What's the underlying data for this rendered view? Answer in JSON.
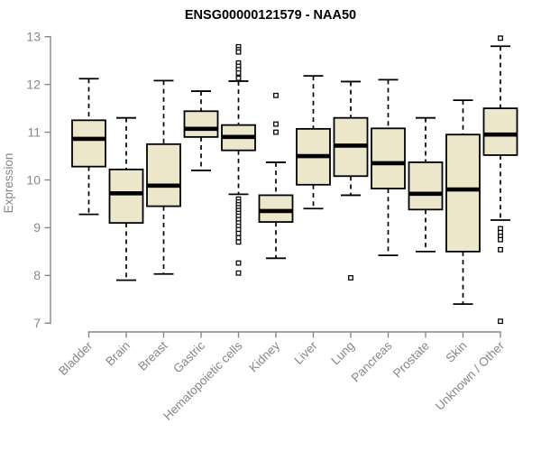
{
  "chart_data": {
    "type": "boxplot",
    "title": "ENSG00000121579 - NAA50",
    "ylabel": "Expression",
    "xlabel": "",
    "ylim": [
      7,
      13
    ],
    "yticks": [
      7,
      8,
      9,
      10,
      11,
      12,
      13
    ],
    "grid": false,
    "legend": "none",
    "x_label_rotation_deg": 45,
    "categories": [
      "Bladder",
      "Brain",
      "Breast",
      "Gastric",
      "Hematopoietic cells",
      "Kidney",
      "Liver",
      "Lung",
      "Pancreas",
      "Prostate",
      "Skin",
      "Unknown / Other"
    ],
    "series": [
      {
        "category": "Bladder",
        "whisker_low": 9.28,
        "q1": 10.28,
        "median": 10.86,
        "q3": 11.25,
        "whisker_high": 12.12,
        "outliers": []
      },
      {
        "category": "Brain",
        "whisker_low": 7.9,
        "q1": 9.1,
        "median": 9.72,
        "q3": 10.22,
        "whisker_high": 11.3,
        "outliers": []
      },
      {
        "category": "Breast",
        "whisker_low": 8.03,
        "q1": 9.45,
        "median": 9.88,
        "q3": 10.75,
        "whisker_high": 12.08,
        "outliers": []
      },
      {
        "category": "Gastric",
        "whisker_low": 10.2,
        "q1": 10.9,
        "median": 11.07,
        "q3": 11.44,
        "whisker_high": 11.86,
        "outliers": []
      },
      {
        "category": "Hematopoietic cells",
        "whisker_low": 9.7,
        "q1": 10.62,
        "median": 10.9,
        "q3": 11.15,
        "whisker_high": 12.07,
        "outliers": [
          12.79,
          12.73,
          12.68,
          12.45,
          12.38,
          12.31,
          12.24,
          12.13,
          9.6,
          9.54,
          9.48,
          9.42,
          9.36,
          9.3,
          9.24,
          9.17,
          9.1,
          9.03,
          8.96,
          8.88,
          8.79,
          8.7,
          8.26,
          8.05
        ]
      },
      {
        "category": "Kidney",
        "whisker_low": 8.36,
        "q1": 9.12,
        "median": 9.35,
        "q3": 9.68,
        "whisker_high": 10.37,
        "outliers": [
          11.77,
          11.17,
          11.0
        ]
      },
      {
        "category": "Liver",
        "whisker_low": 9.4,
        "q1": 9.9,
        "median": 10.5,
        "q3": 11.07,
        "whisker_high": 12.18,
        "outliers": []
      },
      {
        "category": "Lung",
        "whisker_low": 9.68,
        "q1": 10.08,
        "median": 10.72,
        "q3": 11.3,
        "whisker_high": 12.06,
        "outliers": [
          7.95
        ]
      },
      {
        "category": "Pancreas",
        "whisker_low": 8.42,
        "q1": 9.82,
        "median": 10.35,
        "q3": 11.08,
        "whisker_high": 12.1,
        "outliers": []
      },
      {
        "category": "Prostate",
        "whisker_low": 8.5,
        "q1": 9.38,
        "median": 9.71,
        "q3": 10.37,
        "whisker_high": 11.3,
        "outliers": []
      },
      {
        "category": "Skin",
        "whisker_low": 7.4,
        "q1": 8.5,
        "median": 9.8,
        "q3": 10.95,
        "whisker_high": 11.67,
        "outliers": []
      },
      {
        "category": "Unknown / Other",
        "whisker_low": 9.16,
        "q1": 10.52,
        "median": 10.95,
        "q3": 11.5,
        "whisker_high": 12.8,
        "outliers": [
          12.97,
          8.98,
          8.9,
          8.82,
          8.75,
          8.54,
          7.04
        ]
      }
    ],
    "colors": {
      "box_fill": "#ece7cb",
      "box_stroke": "#000000",
      "median": "#000000",
      "whisker": "#000000",
      "outlier_stroke": "#000000",
      "axis": "#878787",
      "title": "#000000",
      "background": "#ffffff"
    }
  }
}
